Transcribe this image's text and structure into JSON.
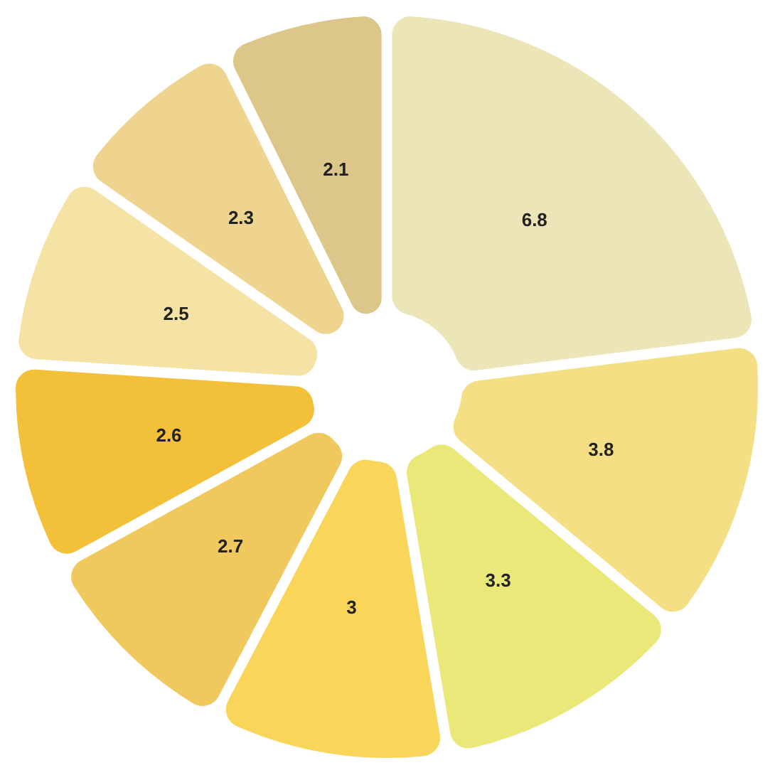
{
  "chart_data": {
    "type": "donut",
    "categories": [
      null,
      null,
      null,
      null,
      null,
      null,
      null,
      null,
      null
    ],
    "values": [
      6.8,
      3.8,
      3.3,
      3,
      2.7,
      2.6,
      2.5,
      2.3,
      2.1
    ],
    "colors": [
      "#ebe5b8",
      "#f5df85",
      "#ebe87a",
      "#f9d65a",
      "#f0c95e",
      "#f3c03a",
      "#f5e2a5",
      "#efd48f",
      "#dcc68a"
    ],
    "data_labels": true
  }
}
